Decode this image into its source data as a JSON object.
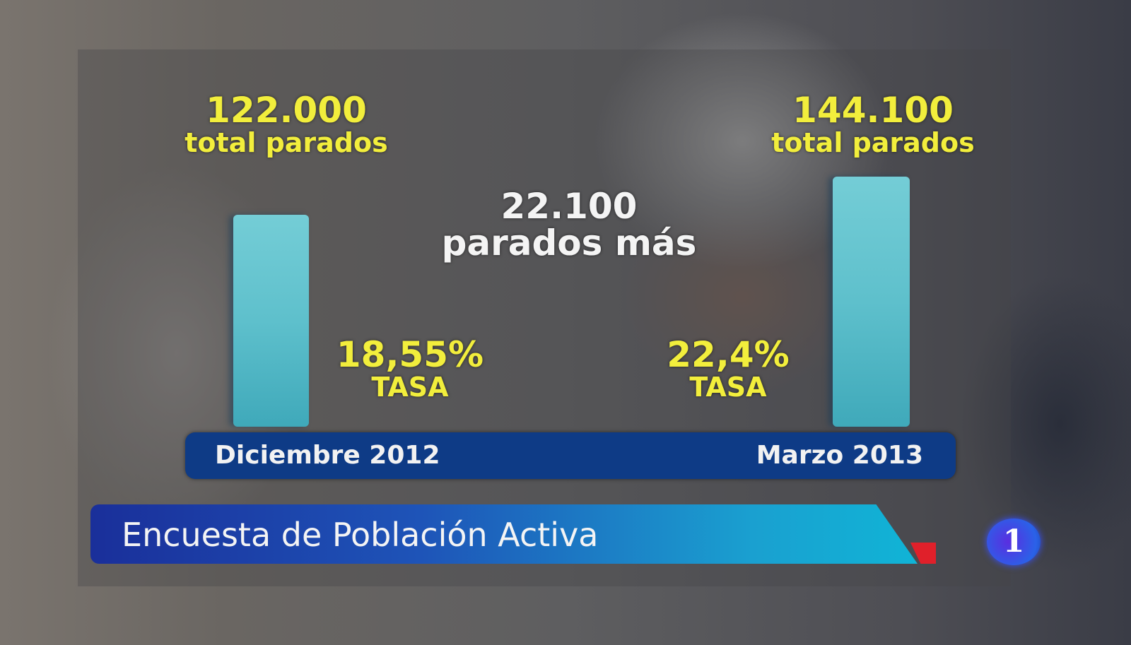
{
  "chart_data": {
    "type": "bar",
    "categories": [
      "Diciembre 2012",
      "Marzo 2013"
    ],
    "values": [
      122000,
      144100
    ],
    "value_labels": [
      "122.000",
      "144.100"
    ],
    "value_caption": "total parados",
    "rates": [
      "18,55%",
      "22,4%"
    ],
    "rate_caption": "TASA",
    "difference": {
      "value": "22.100",
      "caption": "parados más"
    },
    "ylim": [
      0,
      144100
    ],
    "bar_color": "#5ec0cc",
    "label_color": "#f2ee3c"
  },
  "banner": {
    "title": "Encuesta de Población Activa"
  },
  "logo": {
    "text": "1"
  }
}
